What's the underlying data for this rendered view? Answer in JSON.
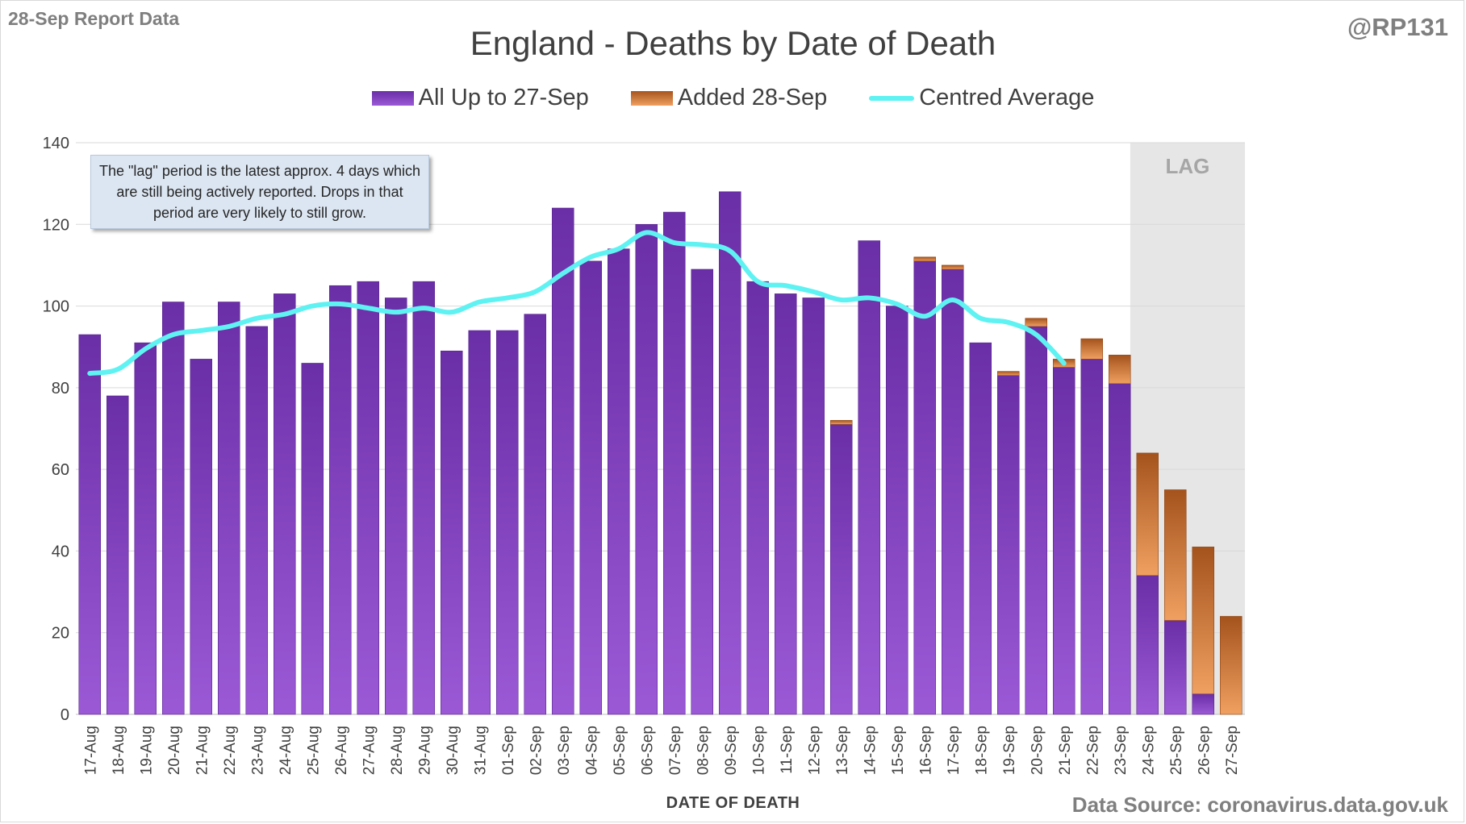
{
  "header": {
    "report_tag": "28-Sep Report Data",
    "handle": "@RP131",
    "source": "Data Source: coronavirus.data.gov.uk"
  },
  "note": {
    "text": "The \"lag\" period is the latest approx. 4 days which are still being actively reported.  Drops in that period are very likely to still grow."
  },
  "colors": {
    "base_top": "#6a2ea6",
    "base_bottom": "#9b59d6",
    "added_top": "#a5531d",
    "added_bottom": "#f0a060",
    "average_line": "#5ff2f2",
    "lag_shade": "#e6e6e6",
    "gridline": "#d9d9d9"
  },
  "chart_data": {
    "type": "bar",
    "stacked": true,
    "title": "England - Deaths by Date of Death",
    "xlabel": "DATE OF DEATH",
    "ylabel": "",
    "ylim": [
      0,
      140
    ],
    "yticks": [
      0,
      20,
      40,
      60,
      80,
      100,
      120,
      140
    ],
    "grid": true,
    "legend_position": "top",
    "categories": [
      "17-Aug",
      "18-Aug",
      "19-Aug",
      "20-Aug",
      "21-Aug",
      "22-Aug",
      "23-Aug",
      "24-Aug",
      "25-Aug",
      "26-Aug",
      "27-Aug",
      "28-Aug",
      "29-Aug",
      "30-Aug",
      "31-Aug",
      "01-Sep",
      "02-Sep",
      "03-Sep",
      "04-Sep",
      "05-Sep",
      "06-Sep",
      "07-Sep",
      "08-Sep",
      "09-Sep",
      "10-Sep",
      "11-Sep",
      "12-Sep",
      "13-Sep",
      "14-Sep",
      "15-Sep",
      "16-Sep",
      "17-Sep",
      "18-Sep",
      "19-Sep",
      "20-Sep",
      "21-Sep",
      "22-Sep",
      "23-Sep",
      "24-Sep",
      "25-Sep",
      "26-Sep",
      "27-Sep"
    ],
    "series": [
      {
        "name": "All Up to 27-Sep",
        "values": [
          93,
          78,
          91,
          101,
          87,
          101,
          95,
          103,
          86,
          105,
          106,
          102,
          106,
          89,
          94,
          94,
          98,
          124,
          111,
          114,
          120,
          123,
          109,
          128,
          106,
          103,
          102,
          71,
          116,
          100,
          111,
          109,
          91,
          83,
          95,
          85,
          87,
          81,
          34,
          23,
          5,
          0
        ]
      },
      {
        "name": "Added 28-Sep",
        "values": [
          0,
          0,
          0,
          0,
          0,
          0,
          0,
          0,
          0,
          0,
          0,
          0,
          0,
          0,
          0,
          0,
          0,
          0,
          0,
          0,
          0,
          0,
          0,
          0,
          0,
          0,
          0,
          1,
          0,
          0,
          1,
          1,
          0,
          1,
          2,
          2,
          5,
          7,
          30,
          32,
          36,
          24
        ]
      },
      {
        "name": "Centred Average",
        "type": "line",
        "values": [
          83.5,
          84.5,
          89.5,
          93,
          94,
          95,
          97,
          98,
          100,
          100.5,
          99.5,
          98.5,
          99.5,
          98.5,
          101,
          102,
          103.5,
          108,
          112,
          114,
          118,
          115.5,
          115,
          113.5,
          106,
          105,
          103.5,
          101.5,
          102,
          100.5,
          97.5,
          101.5,
          97,
          96,
          93,
          86,
          null,
          null,
          null,
          null,
          null,
          null
        ]
      }
    ],
    "annotations": [
      {
        "text": "LAG",
        "from": "24-Sep",
        "to": "27-Sep"
      }
    ]
  }
}
